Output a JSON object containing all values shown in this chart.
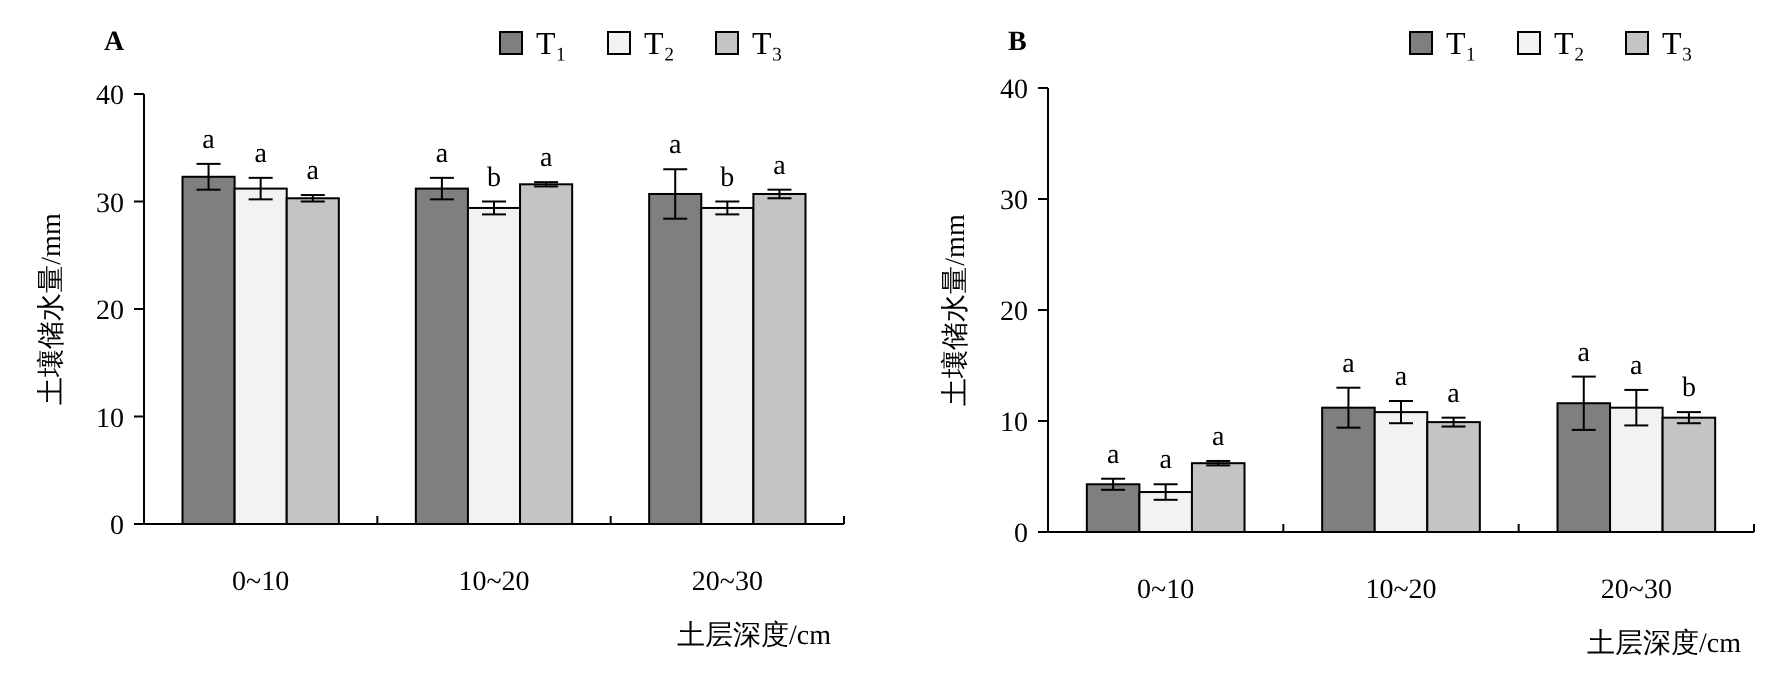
{
  "chart_data": [
    {
      "type": "bar",
      "title": "A",
      "ylabel": "土壤储水量/mm",
      "xlabel": "土层深度/cm",
      "categories": [
        "0~10",
        "10~20",
        "20~30"
      ],
      "ylim": [
        0,
        40
      ],
      "yticks": [
        0,
        10,
        20,
        30,
        40
      ],
      "legend": "top right",
      "series": [
        {
          "name": "T₁",
          "color": "#7f7f7f",
          "values": [
            32.3,
            31.2,
            30.7
          ],
          "errors": [
            1.2,
            1.0,
            2.3
          ],
          "value_labels": [
            "a",
            "a",
            "a"
          ]
        },
        {
          "name": "T₂",
          "color": "#f2f2f2",
          "values": [
            31.2,
            29.4,
            29.4
          ],
          "errors": [
            1.0,
            0.6,
            0.6
          ],
          "value_labels": [
            "a",
            "b",
            "b"
          ]
        },
        {
          "name": "T₃",
          "color": "#c4c4c4",
          "values": [
            30.3,
            31.6,
            30.7
          ],
          "errors": [
            0.3,
            0.2,
            0.4
          ],
          "value_labels": [
            "a",
            "a",
            "a"
          ]
        }
      ]
    },
    {
      "type": "bar",
      "title": "B",
      "ylabel": "土壤储水量/mm",
      "xlabel": "土层深度/cm",
      "categories": [
        "0~10",
        "10~20",
        "20~30"
      ],
      "ylim": [
        0,
        40
      ],
      "yticks": [
        0,
        10,
        20,
        30,
        40
      ],
      "legend": "top right",
      "series": [
        {
          "name": "T₁",
          "color": "#7f7f7f",
          "values": [
            4.3,
            11.2,
            11.6
          ],
          "errors": [
            0.5,
            1.8,
            2.4
          ],
          "value_labels": [
            "a",
            "a",
            "a"
          ]
        },
        {
          "name": "T₂",
          "color": "#f2f2f2",
          "values": [
            3.6,
            10.8,
            11.2
          ],
          "errors": [
            0.7,
            1.0,
            1.6
          ],
          "value_labels": [
            "a",
            "a",
            "a"
          ]
        },
        {
          "name": "T₃",
          "color": "#c4c4c4",
          "values": [
            6.2,
            9.9,
            10.3
          ],
          "errors": [
            0.2,
            0.4,
            0.5
          ],
          "value_labels": [
            "a",
            "a",
            "b"
          ]
        }
      ]
    }
  ]
}
